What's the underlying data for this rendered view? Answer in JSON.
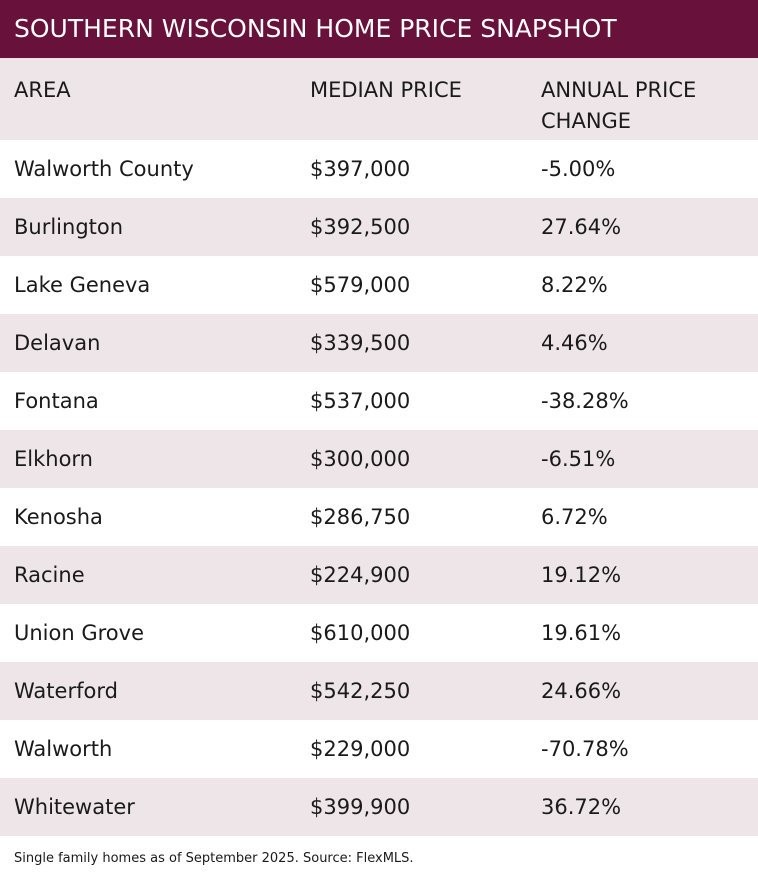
{
  "header": {
    "title": "SOUTHERN WISCONSIN HOME PRICE SNAPSHOT"
  },
  "table": {
    "columns": [
      "AREA",
      "MEDIAN PRICE",
      "ANNUAL PRICE CHANGE"
    ],
    "rows": [
      [
        "Walworth County",
        "$397,000",
        "-5.00%"
      ],
      [
        "Burlington",
        "$392,500",
        "27.64%"
      ],
      [
        "Lake Geneva",
        "$579,000",
        "8.22%"
      ],
      [
        "Delavan",
        "$339,500",
        "4.46%"
      ],
      [
        "Fontana",
        "$537,000",
        "-38.28%"
      ],
      [
        "Elkhorn",
        "$300,000",
        "-6.51%"
      ],
      [
        "Kenosha",
        "$286,750",
        "6.72%"
      ],
      [
        "Racine",
        "$224,900",
        "19.12%"
      ],
      [
        "Union Grove",
        "$610,000",
        "19.61%"
      ],
      [
        "Waterford",
        "$542,250",
        "24.66%"
      ],
      [
        "Walworth",
        "$229,000",
        "-70.78%"
      ],
      [
        "Whitewater",
        "$399,900",
        "36.72%"
      ]
    ]
  },
  "footer": {
    "note": "Single family homes as of September 2025. Source: FlexMLS."
  }
}
